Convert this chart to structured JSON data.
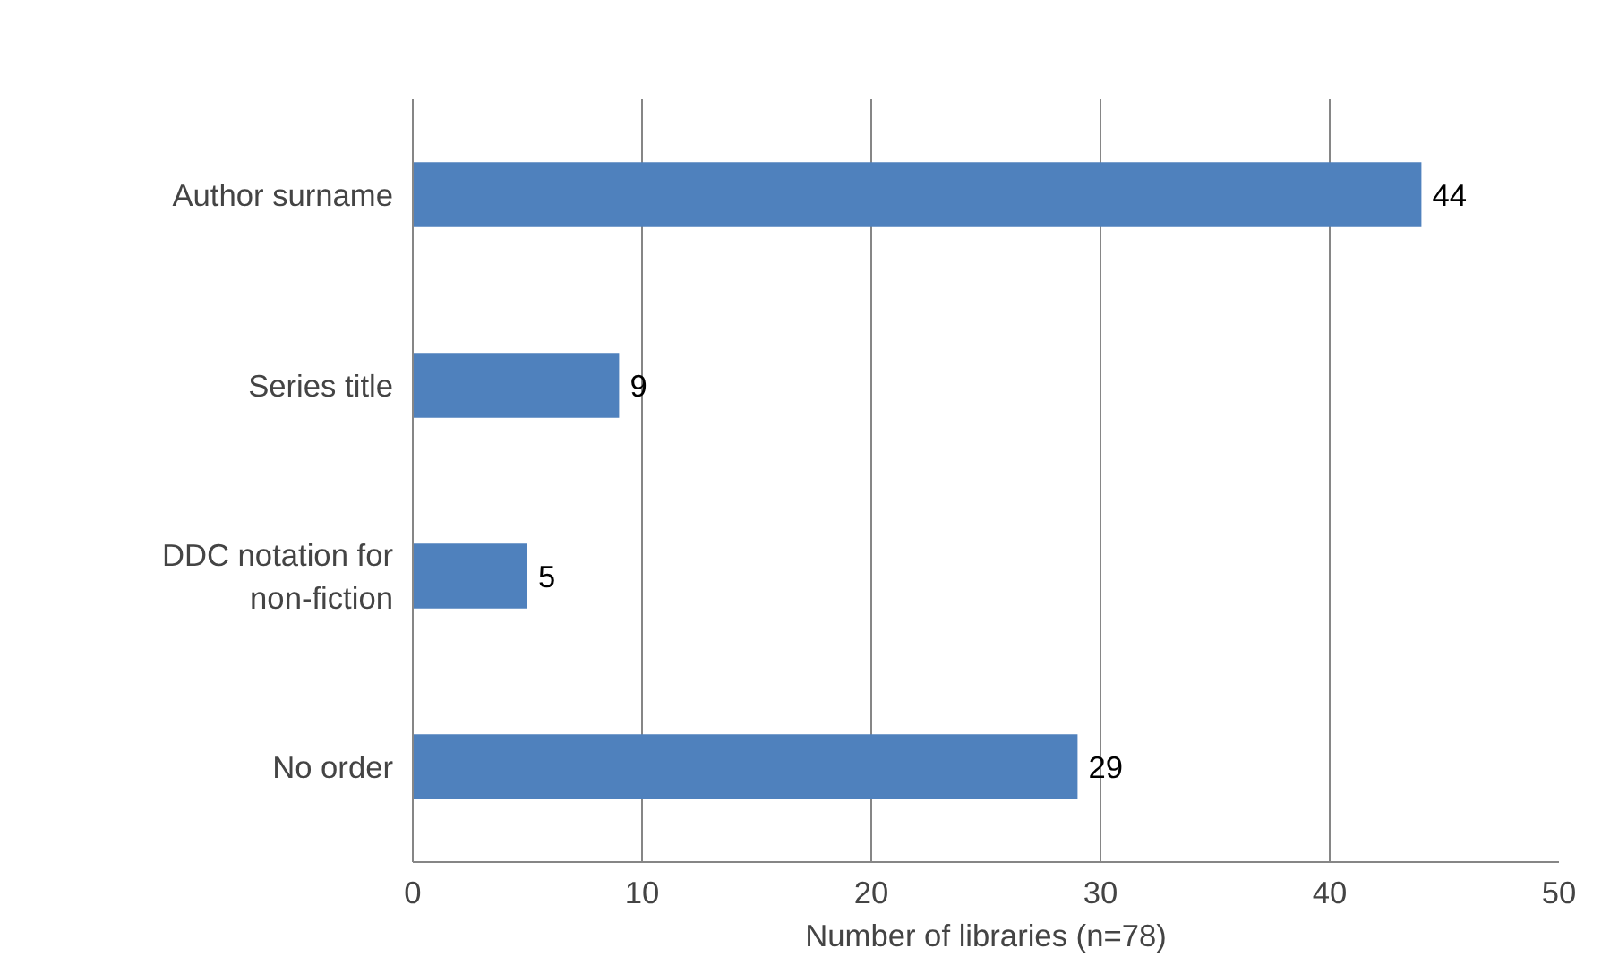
{
  "chart_data": {
    "type": "bar",
    "orientation": "horizontal",
    "categories": [
      "Author surname",
      "Series title",
      "DDC notation for non-fiction",
      "No order"
    ],
    "values": [
      44,
      9,
      5,
      29
    ],
    "color": "#4f81bd",
    "xlim": [
      0,
      50
    ],
    "xticks": [
      0,
      10,
      20,
      30,
      40,
      50
    ],
    "xlabel": "Number of libraries (n=78)",
    "grid": "x",
    "data_labels": true
  }
}
